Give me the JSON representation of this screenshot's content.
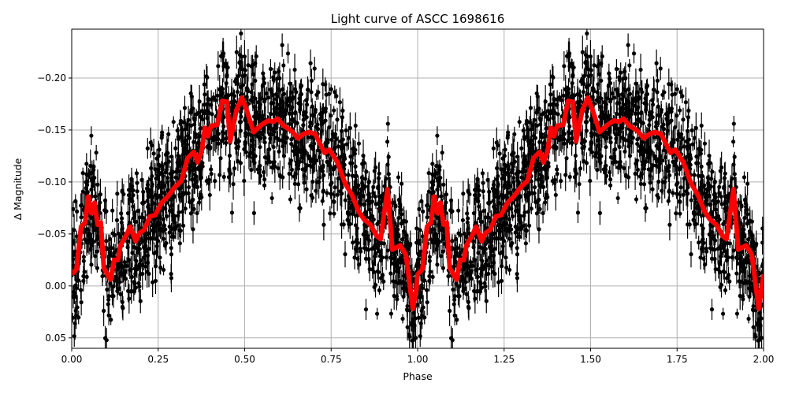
{
  "chart_data": {
    "type": "scatter",
    "title": "Light curve of ASCC 1698616",
    "xlabel": "Phase",
    "ylabel": "Δ Magnitude",
    "xlim": [
      0,
      2
    ],
    "ylim": [
      0.06,
      -0.247
    ],
    "y_inverted": true,
    "grid": true,
    "xticks": [
      0,
      0.25,
      0.5,
      0.75,
      1.0,
      1.25,
      1.5,
      1.75,
      2.0
    ],
    "xtick_labels": [
      "0.00",
      "0.25",
      "0.50",
      "0.75",
      "1.00",
      "1.25",
      "1.50",
      "1.75",
      "2.00"
    ],
    "yticks": [
      -0.2,
      -0.15,
      -0.1,
      -0.05,
      0.0,
      0.05
    ],
    "ytick_labels": [
      "−0.20",
      "−0.15",
      "−0.10",
      "−0.05",
      "0.00",
      "0.05"
    ],
    "colors": {
      "points": "#000000",
      "model": "#ff0000",
      "grid": "#b0b0b0"
    },
    "series": [
      {
        "kind": "errorbar-scatter",
        "color": "#000000",
        "marker": "circle",
        "errorbars": true
      },
      {
        "kind": "line",
        "color": "#ff0000",
        "points": [
          [
            0.0,
            -0.011
          ],
          [
            0.014,
            -0.016
          ],
          [
            0.027,
            -0.057
          ],
          [
            0.039,
            -0.061
          ],
          [
            0.048,
            -0.086
          ],
          [
            0.057,
            -0.07
          ],
          [
            0.066,
            -0.08
          ],
          [
            0.075,
            -0.059
          ],
          [
            0.084,
            -0.061
          ],
          [
            0.093,
            -0.017
          ],
          [
            0.112,
            -0.006
          ],
          [
            0.123,
            -0.025
          ],
          [
            0.134,
            -0.025
          ],
          [
            0.141,
            -0.039
          ],
          [
            0.157,
            -0.048
          ],
          [
            0.169,
            -0.057
          ],
          [
            0.185,
            -0.043
          ],
          [
            0.196,
            -0.051
          ],
          [
            0.21,
            -0.054
          ],
          [
            0.226,
            -0.067
          ],
          [
            0.241,
            -0.068
          ],
          [
            0.26,
            -0.08
          ],
          [
            0.278,
            -0.086
          ],
          [
            0.298,
            -0.095
          ],
          [
            0.317,
            -0.101
          ],
          [
            0.335,
            -0.123
          ],
          [
            0.353,
            -0.129
          ],
          [
            0.364,
            -0.119
          ],
          [
            0.376,
            -0.13
          ],
          [
            0.385,
            -0.152
          ],
          [
            0.394,
            -0.144
          ],
          [
            0.403,
            -0.154
          ],
          [
            0.421,
            -0.155
          ],
          [
            0.435,
            -0.178
          ],
          [
            0.449,
            -0.177
          ],
          [
            0.458,
            -0.139
          ],
          [
            0.476,
            -0.169
          ],
          [
            0.492,
            -0.181
          ],
          [
            0.506,
            -0.169
          ],
          [
            0.526,
            -0.148
          ],
          [
            0.549,
            -0.155
          ],
          [
            0.567,
            -0.159
          ],
          [
            0.583,
            -0.158
          ],
          [
            0.595,
            -0.161
          ],
          [
            0.613,
            -0.154
          ],
          [
            0.636,
            -0.149
          ],
          [
            0.654,
            -0.142
          ],
          [
            0.67,
            -0.146
          ],
          [
            0.686,
            -0.148
          ],
          [
            0.704,
            -0.146
          ],
          [
            0.731,
            -0.128
          ],
          [
            0.745,
            -0.131
          ],
          [
            0.768,
            -0.119
          ],
          [
            0.79,
            -0.099
          ],
          [
            0.811,
            -0.087
          ],
          [
            0.829,
            -0.072
          ],
          [
            0.845,
            -0.064
          ],
          [
            0.863,
            -0.059
          ],
          [
            0.882,
            -0.048
          ],
          [
            0.893,
            -0.045
          ],
          [
            0.913,
            -0.093
          ],
          [
            0.927,
            -0.035
          ],
          [
            0.95,
            -0.039
          ],
          [
            0.966,
            -0.03
          ],
          [
            0.986,
            0.022
          ],
          [
            0.995,
            0.006
          ],
          [
            1.0,
            -0.011
          ],
          [
            1.014,
            -0.016
          ],
          [
            1.027,
            -0.057
          ],
          [
            1.039,
            -0.061
          ],
          [
            1.048,
            -0.086
          ],
          [
            1.057,
            -0.07
          ],
          [
            1.066,
            -0.08
          ],
          [
            1.075,
            -0.059
          ],
          [
            1.084,
            -0.061
          ],
          [
            1.093,
            -0.017
          ],
          [
            1.112,
            -0.006
          ],
          [
            1.123,
            -0.025
          ],
          [
            1.134,
            -0.025
          ],
          [
            1.141,
            -0.039
          ],
          [
            1.157,
            -0.048
          ],
          [
            1.169,
            -0.057
          ],
          [
            1.185,
            -0.043
          ],
          [
            1.196,
            -0.051
          ],
          [
            1.21,
            -0.054
          ],
          [
            1.226,
            -0.067
          ],
          [
            1.241,
            -0.068
          ],
          [
            1.26,
            -0.08
          ],
          [
            1.278,
            -0.086
          ],
          [
            1.298,
            -0.095
          ],
          [
            1.317,
            -0.101
          ],
          [
            1.335,
            -0.123
          ],
          [
            1.353,
            -0.129
          ],
          [
            1.364,
            -0.119
          ],
          [
            1.376,
            -0.13
          ],
          [
            1.385,
            -0.152
          ],
          [
            1.394,
            -0.144
          ],
          [
            1.403,
            -0.154
          ],
          [
            1.421,
            -0.155
          ],
          [
            1.435,
            -0.178
          ],
          [
            1.449,
            -0.177
          ],
          [
            1.458,
            -0.139
          ],
          [
            1.476,
            -0.169
          ],
          [
            1.492,
            -0.181
          ],
          [
            1.506,
            -0.169
          ],
          [
            1.526,
            -0.148
          ],
          [
            1.549,
            -0.155
          ],
          [
            1.567,
            -0.159
          ],
          [
            1.583,
            -0.158
          ],
          [
            1.595,
            -0.161
          ],
          [
            1.613,
            -0.154
          ],
          [
            1.636,
            -0.149
          ],
          [
            1.654,
            -0.142
          ],
          [
            1.67,
            -0.146
          ],
          [
            1.686,
            -0.148
          ],
          [
            1.704,
            -0.146
          ],
          [
            1.731,
            -0.128
          ],
          [
            1.745,
            -0.131
          ],
          [
            1.768,
            -0.119
          ],
          [
            1.79,
            -0.099
          ],
          [
            1.811,
            -0.087
          ],
          [
            1.829,
            -0.072
          ],
          [
            1.845,
            -0.064
          ],
          [
            1.863,
            -0.059
          ],
          [
            1.882,
            -0.048
          ],
          [
            1.893,
            -0.045
          ],
          [
            1.913,
            -0.093
          ],
          [
            1.927,
            -0.035
          ],
          [
            1.95,
            -0.039
          ],
          [
            1.966,
            -0.03
          ],
          [
            1.986,
            0.022
          ],
          [
            2.0,
            -0.011
          ]
        ]
      }
    ]
  }
}
